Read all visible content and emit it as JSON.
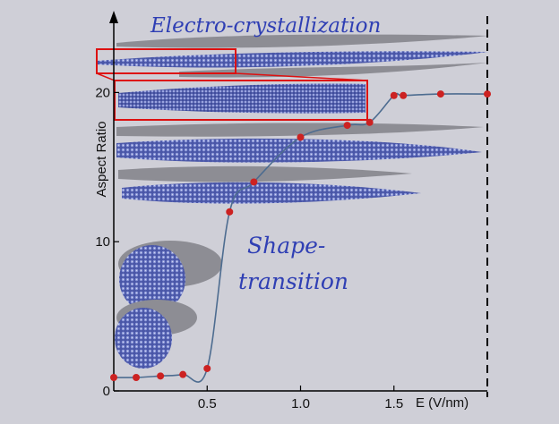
{
  "chart_data": {
    "type": "line",
    "xlabel": "E (V/nm)",
    "ylabel": "Aspect Ratio",
    "x_tick_labels": [
      "0.5",
      "1.0",
      "1.5"
    ],
    "y_tick_labels": [
      "0",
      "10",
      "20"
    ],
    "x_ticks": [
      0.5,
      1.0,
      1.5
    ],
    "y_ticks": [
      0,
      10,
      20
    ],
    "xlim": [
      0,
      2.0
    ],
    "ylim": [
      0,
      25
    ],
    "grid": false,
    "legend": "none",
    "series": [
      {
        "color": "#4d6c90",
        "marker_color": "#cc2222",
        "x": [
          0.0,
          0.12,
          0.25,
          0.37,
          0.5,
          0.62,
          0.75,
          1.0,
          1.25,
          1.37,
          1.5,
          1.55,
          1.75,
          2.0
        ],
        "y": [
          0.9,
          0.9,
          1.0,
          1.1,
          1.5,
          12.0,
          14.0,
          17.0,
          17.8,
          18.0,
          19.8,
          19.8,
          19.9,
          19.9
        ]
      }
    ],
    "annotations": [
      {
        "text": "Electro-crystallization",
        "color": "#2f3fb4"
      },
      {
        "text_lines": [
          "Shape-",
          "transition"
        ],
        "color": "#2f3fb4"
      }
    ],
    "highlight_boxes": 2,
    "dashed_vertical_at_x": 2.0
  }
}
